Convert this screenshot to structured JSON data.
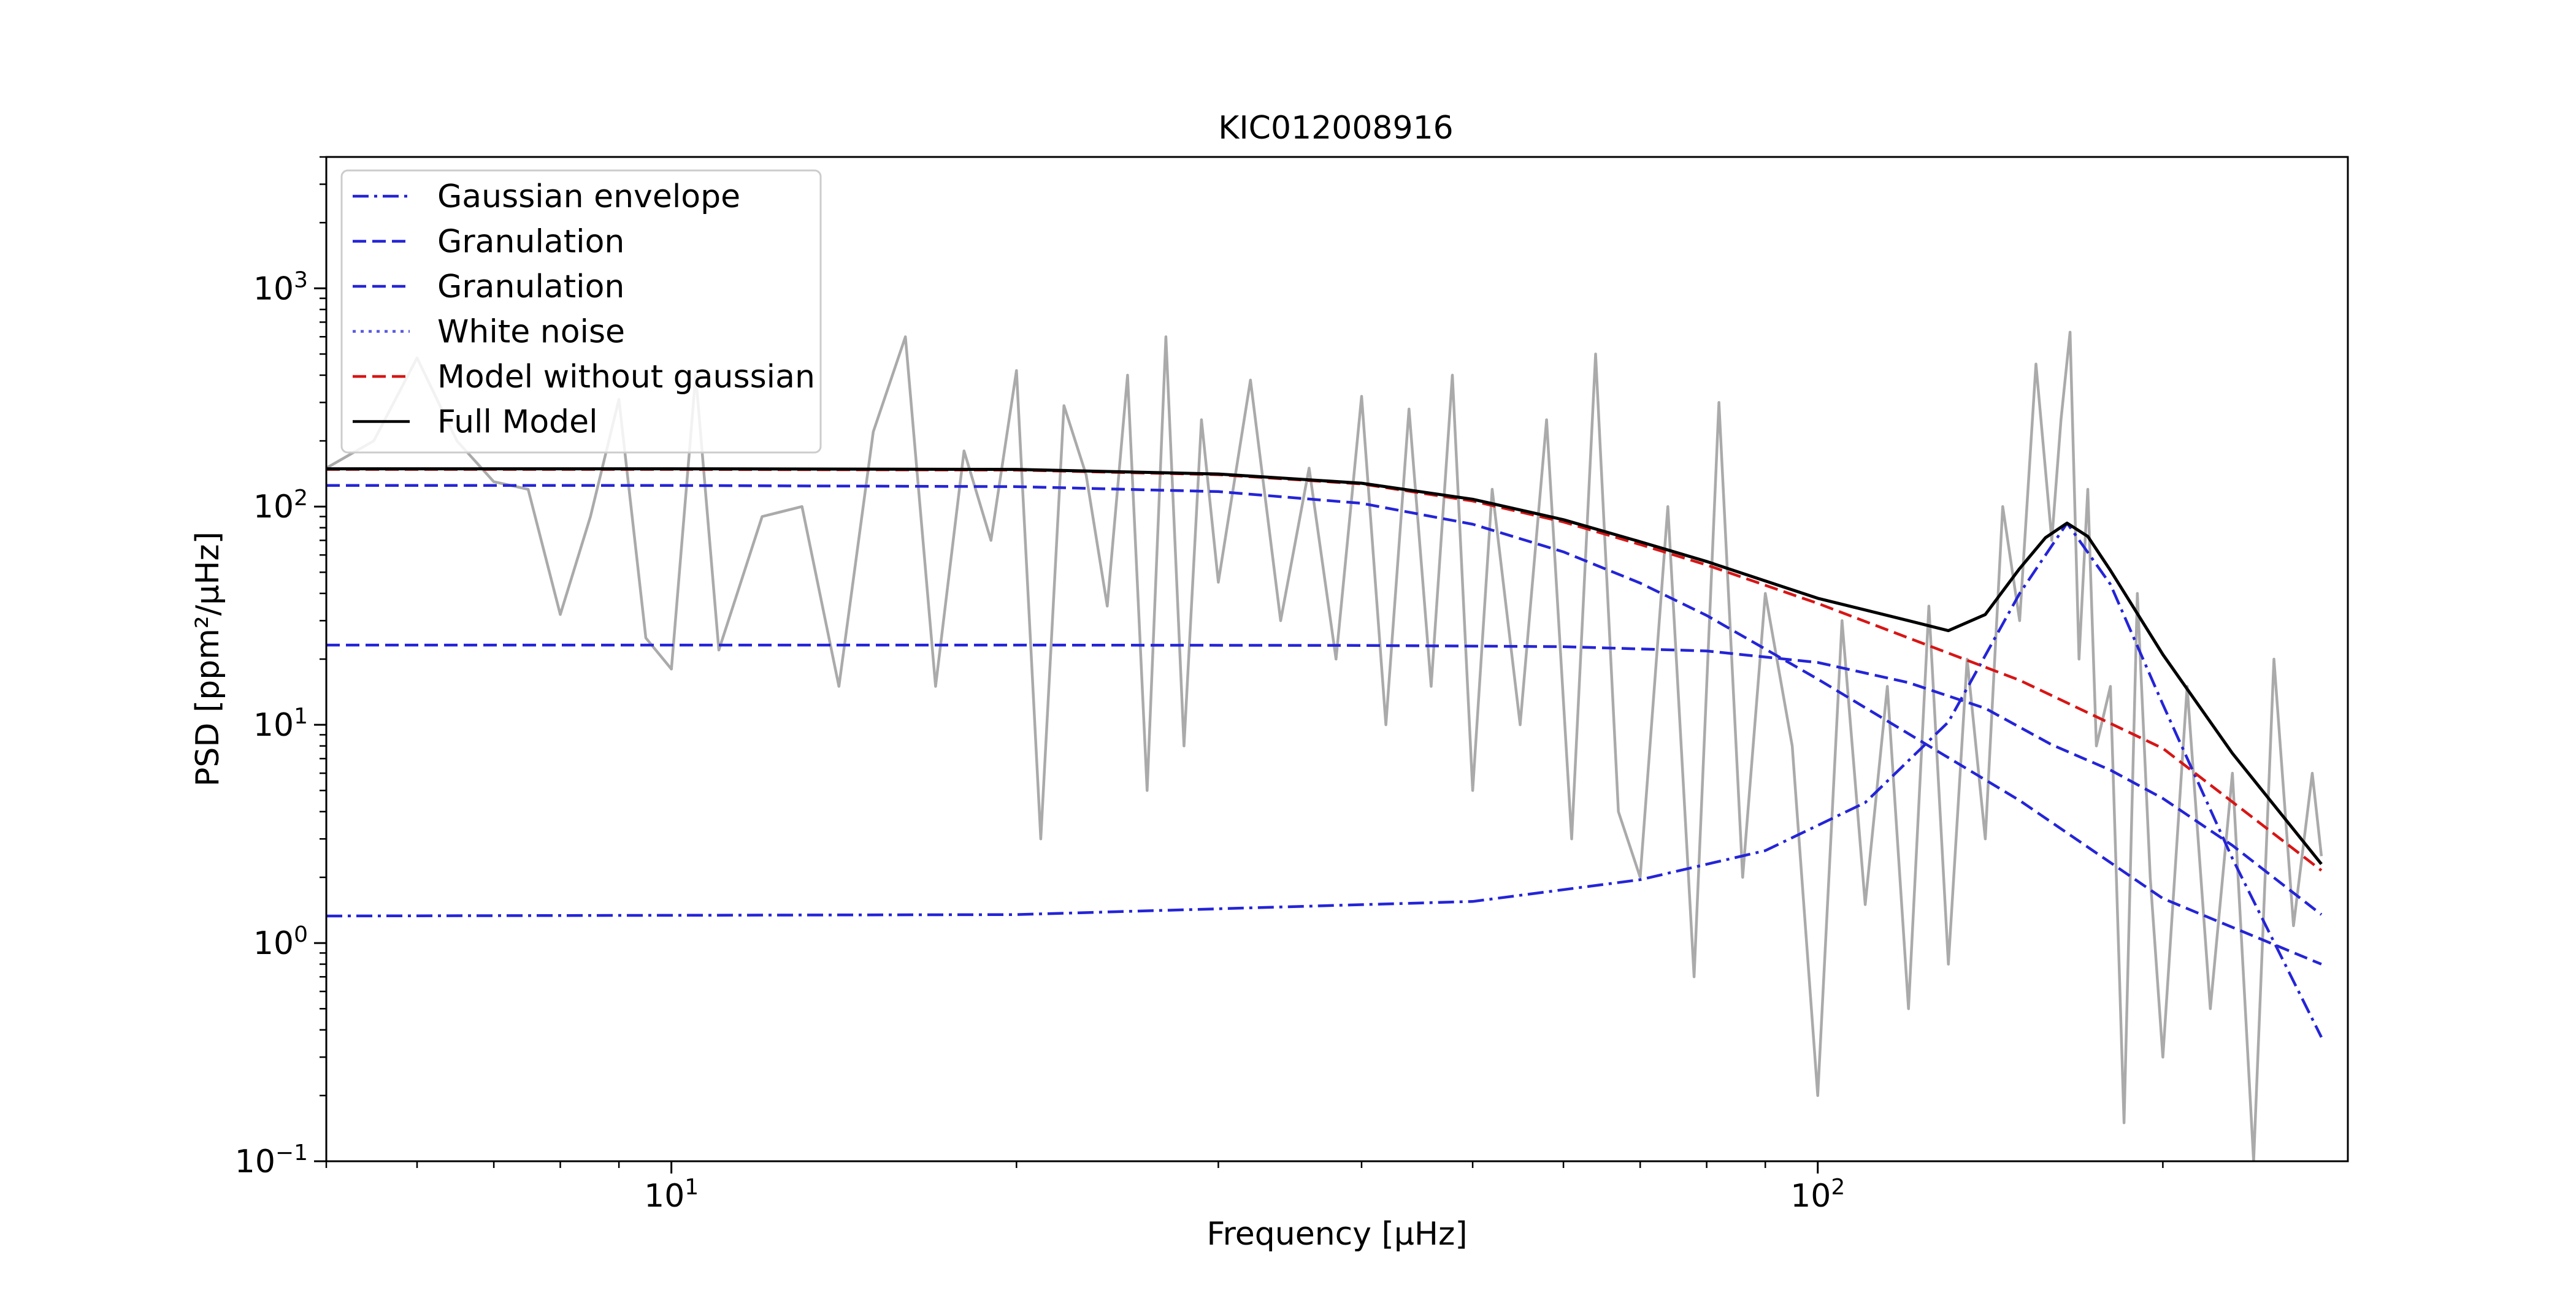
{
  "colors": {
    "spectrum": "#aaaaaa",
    "component": "#2424d8",
    "model_without_gaussian": "#d81515",
    "full_model": "#000000"
  },
  "chart_data": {
    "type": "line",
    "title": "KIC012008916",
    "xlabel": "Frequency [μHz]",
    "ylabel": "PSD [ppm²/μHz]",
    "xscale": "log",
    "yscale": "log",
    "xlim": [
      5,
      290
    ],
    "ylim": [
      0.1,
      4000
    ],
    "x_ticks": [
      {
        "value": 10,
        "base": "10",
        "exp": "1"
      },
      {
        "value": 100,
        "base": "10",
        "exp": "2"
      }
    ],
    "y_ticks": [
      {
        "value": 0.1,
        "base": "10",
        "exp": "−1"
      },
      {
        "value": 1,
        "base": "10",
        "exp": "0"
      },
      {
        "value": 10,
        "base": "10",
        "exp": "1"
      },
      {
        "value": 100,
        "base": "10",
        "exp": "2"
      },
      {
        "value": 1000,
        "base": "10",
        "exp": "3"
      }
    ],
    "grid": false,
    "legend": {
      "position": "top-left",
      "entries": [
        {
          "label": "Gaussian envelope",
          "style": "dashdot",
          "color": "#2424d8"
        },
        {
          "label": "Granulation",
          "style": "dashed",
          "color": "#2424d8"
        },
        {
          "label": "Granulation",
          "style": "dashed",
          "color": "#2424d8"
        },
        {
          "label": "White noise",
          "style": "dotted",
          "color": "#5a5ae0"
        },
        {
          "label": "Model without gaussian",
          "style": "dashed",
          "color": "#d81515"
        },
        {
          "label": "Full Model",
          "style": "solid",
          "color": "#000000"
        }
      ]
    },
    "model": {
      "freq_range": [
        5,
        275
      ],
      "gaussian_envelope": {
        "height": 83,
        "center": 165,
        "sigma": 23,
        "base_level": 1.33
      },
      "granulation_1": {
        "amplitude": 125,
        "characteristic_freq": 52
      },
      "granulation_2": {
        "amplitude": 23.2,
        "characteristic_freq": 130
      },
      "white_noise": 0
    },
    "series": [
      {
        "name": "Power spectrum",
        "style": "solid",
        "x": [
          5.0,
          5.5,
          6.0,
          6.5,
          7.0,
          7.5,
          8.0,
          8.5,
          9.0,
          9.5,
          10.0,
          10.5,
          11.0,
          12.0,
          13.0,
          14.0,
          15.0,
          16.0,
          17.0,
          18.0,
          19.0,
          20.0,
          21.0,
          22.0,
          23.0,
          24.0,
          25.0,
          26.0,
          27.0,
          28.0,
          29.0,
          30.0,
          32.0,
          34.0,
          36.0,
          38.0,
          40.0,
          42.0,
          44.0,
          46.0,
          48.0,
          50.0,
          52.0,
          55.0,
          58.0,
          61.0,
          64.0,
          67.0,
          70.0,
          74.0,
          78.0,
          82.0,
          86.0,
          90.0,
          95.0,
          100.0,
          105.0,
          110.0,
          115.0,
          120.0,
          125.0,
          130.0,
          135.0,
          140.0,
          145.0,
          150.0,
          155.0,
          160.0,
          163.0,
          166.0,
          169.0,
          172.0,
          175.0,
          180.0,
          185.0,
          190.0,
          195.0,
          200.0,
          210.0,
          220.0,
          230.0,
          240.0,
          250.0,
          260.0,
          270.0,
          275.0
        ],
        "y": [
          150,
          200,
          480,
          200,
          130,
          120,
          32,
          90,
          310,
          25,
          18,
          400,
          22,
          90,
          100,
          15,
          220,
          600,
          15,
          180,
          70,
          420,
          3,
          290,
          140,
          35,
          400,
          5,
          600,
          8,
          250,
          45,
          380,
          30,
          150,
          20,
          320,
          10,
          280,
          15,
          400,
          5,
          120,
          10,
          250,
          3,
          500,
          4,
          2,
          100,
          0.7,
          300,
          2,
          40,
          8,
          0.2,
          30,
          1.5,
          15,
          0.5,
          35,
          0.8,
          20,
          3,
          100,
          30,
          450,
          70,
          250,
          630,
          20,
          120,
          8,
          15,
          0.15,
          40,
          2,
          0.3,
          15,
          0.5,
          6,
          0.1,
          20,
          1.2,
          6,
          2.5
        ]
      },
      {
        "name": "Gaussian envelope",
        "style": "dashdot",
        "x": [
          5,
          20,
          50,
          70,
          90,
          110,
          130,
          150,
          165,
          180,
          200,
          230,
          275
        ],
        "y": [
          1.33,
          1.35,
          1.55,
          1.95,
          2.65,
          4.4,
          10.3,
          40,
          84,
          44,
          12.4,
          2.44,
          0.37
        ]
      },
      {
        "name": "Granulation",
        "style": "dashed",
        "x": [
          5,
          10,
          20,
          30,
          40,
          50,
          60,
          70,
          80,
          100,
          120,
          150,
          200,
          275
        ],
        "y": [
          125,
          124.9,
          123.4,
          117.1,
          103.5,
          83,
          62,
          44.6,
          31.7,
          16.2,
          9.1,
          4.5,
          1.6,
          0.8
        ]
      },
      {
        "name": "Granulation",
        "style": "dashed",
        "x": [
          5,
          10,
          20,
          40,
          60,
          80,
          100,
          120,
          140,
          160,
          180,
          200,
          230,
          275
        ],
        "y": [
          23.2,
          23.2,
          23.2,
          23.1,
          22.8,
          21.8,
          19.3,
          15.6,
          11.9,
          8.1,
          6.2,
          4.6,
          2.8,
          1.35
        ]
      },
      {
        "name": "Model without gaussian",
        "style": "dashed",
        "x": [
          5,
          10,
          20,
          30,
          40,
          50,
          60,
          70,
          80,
          100,
          120,
          150,
          200,
          275
        ],
        "y": [
          148,
          148,
          147,
          140,
          127,
          106,
          85,
          67,
          54,
          36,
          25,
          16,
          7.8,
          2.15
        ]
      },
      {
        "name": "Full Model",
        "style": "solid",
        "x": [
          5,
          10,
          20,
          30,
          40,
          50,
          60,
          70,
          80,
          100,
          120,
          130,
          140,
          150,
          158,
          165,
          172,
          180,
          200,
          230,
          275
        ],
        "y": [
          149,
          149,
          148,
          141,
          128,
          108,
          87,
          69,
          56,
          38,
          30,
          27,
          32,
          52,
          72,
          84,
          73,
          51,
          21,
          7.4,
          2.3
        ]
      }
    ]
  }
}
